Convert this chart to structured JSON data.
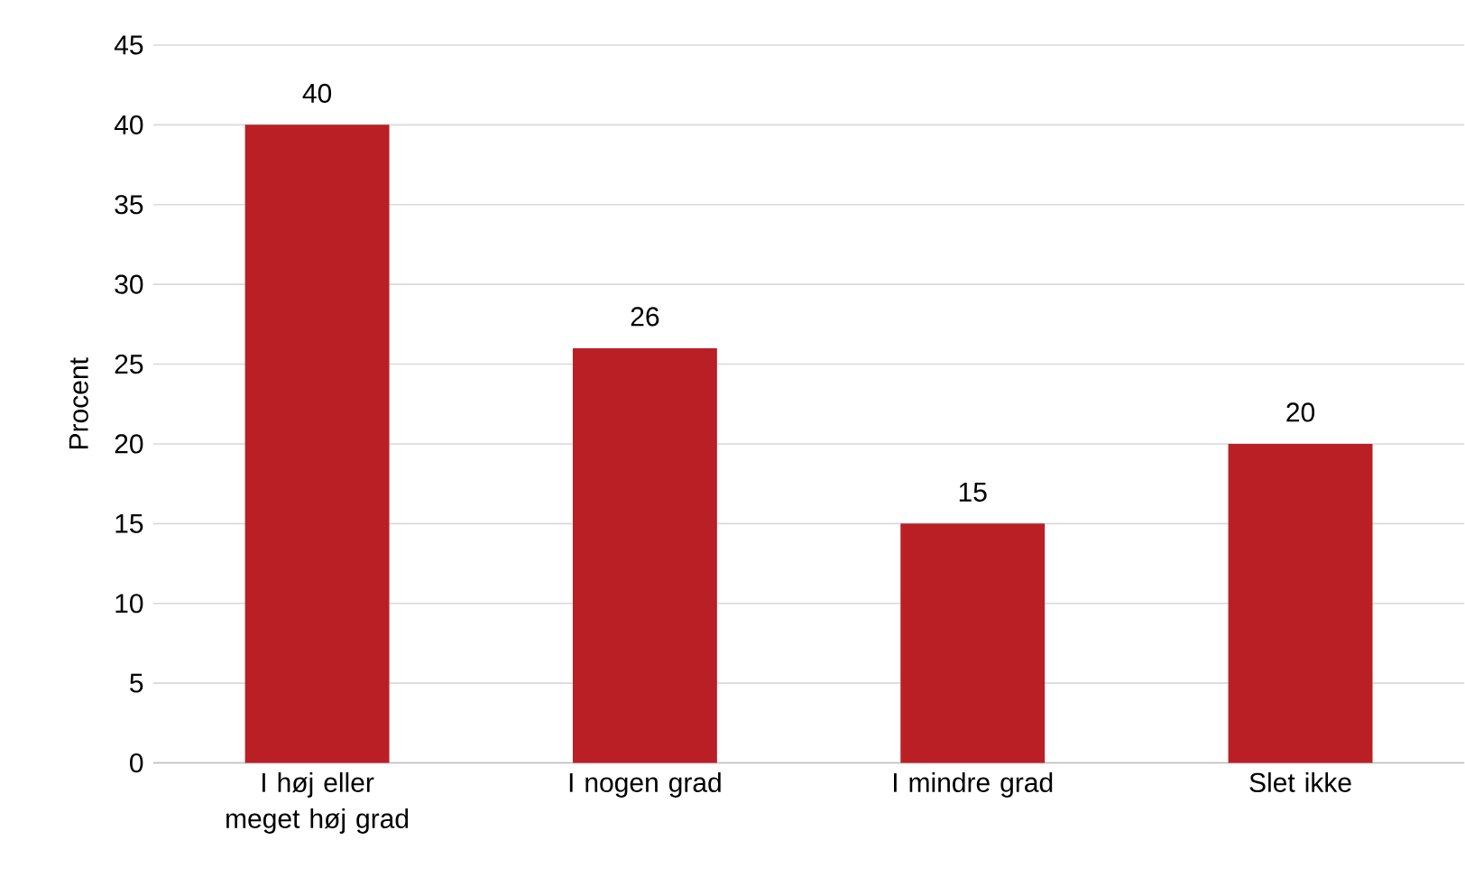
{
  "chart_data": {
    "type": "bar",
    "ylabel": "Procent",
    "categories": [
      "I høj eller meget høj grad",
      "I nogen grad",
      "I mindre grad",
      "Slet ikke"
    ],
    "values": [
      40,
      26,
      15,
      20
    ],
    "color": "#b91f24",
    "data_labels": true,
    "ylim": [
      0,
      45
    ],
    "yticks": [
      0,
      5,
      10,
      15,
      20,
      25,
      30,
      35,
      40,
      45
    ],
    "grid": "y"
  }
}
